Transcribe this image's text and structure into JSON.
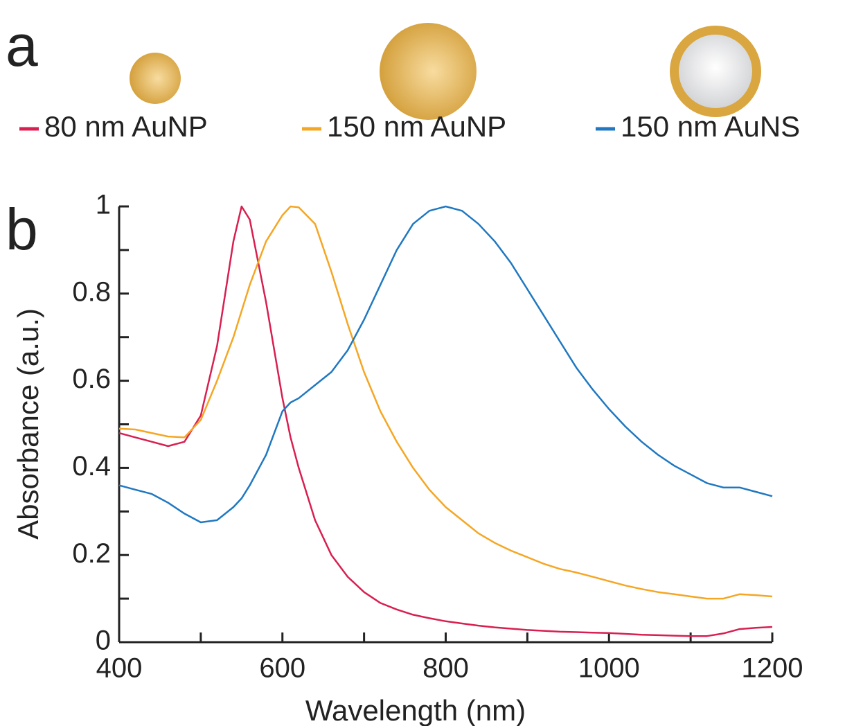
{
  "panel_labels": [
    "a",
    "b"
  ],
  "chart_data": {
    "type": "line",
    "xlabel": "Wavelength (nm)",
    "ylabel": "Absorbance (a.u.)",
    "x": [
      400,
      420,
      440,
      460,
      480,
      500,
      520,
      540,
      550,
      560,
      580,
      600,
      610,
      620,
      640,
      660,
      680,
      700,
      720,
      740,
      760,
      780,
      800,
      820,
      840,
      860,
      880,
      900,
      920,
      940,
      960,
      980,
      1000,
      1020,
      1040,
      1060,
      1080,
      1100,
      1120,
      1140,
      1160,
      1180,
      1200
    ],
    "series": [
      {
        "name": "80 nm AuNP",
        "color": "#d81f50",
        "values": [
          0.48,
          0.47,
          0.46,
          0.45,
          0.46,
          0.52,
          0.68,
          0.92,
          1.0,
          0.97,
          0.78,
          0.56,
          0.47,
          0.4,
          0.28,
          0.2,
          0.15,
          0.115,
          0.09,
          0.075,
          0.063,
          0.055,
          0.048,
          0.043,
          0.038,
          0.034,
          0.031,
          0.028,
          0.026,
          0.024,
          0.023,
          0.022,
          0.021,
          0.019,
          0.017,
          0.016,
          0.015,
          0.014,
          0.014,
          0.02,
          0.03,
          0.033,
          0.035
        ]
      },
      {
        "name": "150 nm AuNP",
        "color": "#f5a623",
        "values": [
          0.49,
          0.488,
          0.48,
          0.472,
          0.47,
          0.51,
          0.6,
          0.7,
          0.76,
          0.82,
          0.92,
          0.98,
          1.0,
          0.998,
          0.96,
          0.85,
          0.73,
          0.62,
          0.53,
          0.46,
          0.4,
          0.35,
          0.31,
          0.28,
          0.25,
          0.228,
          0.21,
          0.195,
          0.18,
          0.168,
          0.16,
          0.15,
          0.14,
          0.13,
          0.122,
          0.115,
          0.11,
          0.105,
          0.1,
          0.1,
          0.11,
          0.108,
          0.105
        ]
      },
      {
        "name": "150 nm AuNS",
        "color": "#1f78c1",
        "values": [
          0.36,
          0.35,
          0.34,
          0.32,
          0.295,
          0.275,
          0.28,
          0.31,
          0.33,
          0.36,
          0.43,
          0.53,
          0.55,
          0.56,
          0.59,
          0.62,
          0.67,
          0.74,
          0.82,
          0.9,
          0.96,
          0.99,
          1.0,
          0.99,
          0.96,
          0.92,
          0.87,
          0.81,
          0.75,
          0.69,
          0.63,
          0.58,
          0.535,
          0.495,
          0.46,
          0.43,
          0.405,
          0.385,
          0.365,
          0.355,
          0.355,
          0.345,
          0.335
        ]
      }
    ],
    "xlim": [
      400,
      1200
    ],
    "xticks": [
      400,
      600,
      800,
      1000,
      1200
    ],
    "xminorticks": [
      500,
      700,
      900,
      1100
    ],
    "ylim": [
      0,
      1
    ],
    "yticks": [
      0,
      0.2,
      0.4,
      0.6,
      0.8,
      1
    ],
    "yminorticks": [
      0.1,
      0.3,
      0.5,
      0.7,
      0.9
    ],
    "grid": false,
    "legend_position": "top"
  }
}
